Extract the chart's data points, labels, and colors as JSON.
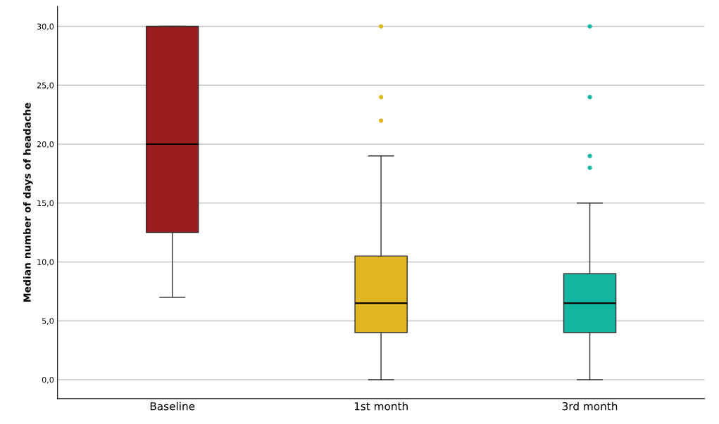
{
  "chart_data": {
    "type": "box",
    "ylabel": "Median number of days of headache",
    "categories": [
      "Baseline",
      "1st month",
      "3rd month"
    ],
    "colors": [
      "#9b1b1e",
      "#e0b722",
      "#12b5a0"
    ],
    "boxes": [
      {
        "low": 7,
        "q1": 12.5,
        "median": 20,
        "q3": 30,
        "high": 30
      },
      {
        "low": 0,
        "q1": 4,
        "median": 6.5,
        "q3": 10.5,
        "high": 19,
        "outliers": [
          22,
          24,
          30
        ]
      },
      {
        "low": 0,
        "q1": 4,
        "median": 6.5,
        "q3": 9,
        "high": 15,
        "outliers": [
          18,
          19,
          24,
          30
        ]
      }
    ],
    "ylim": [
      -1.6,
      31.7
    ],
    "yticks": [
      {
        "value": 0,
        "label": "0,0"
      },
      {
        "value": 5,
        "label": "5,0"
      },
      {
        "value": 10,
        "label": "10,0"
      },
      {
        "value": 15,
        "label": "15,0"
      },
      {
        "value": 20,
        "label": "20,0"
      },
      {
        "value": 25,
        "label": "25,0"
      },
      {
        "value": 30,
        "label": "30,0"
      }
    ],
    "grid": "y"
  }
}
